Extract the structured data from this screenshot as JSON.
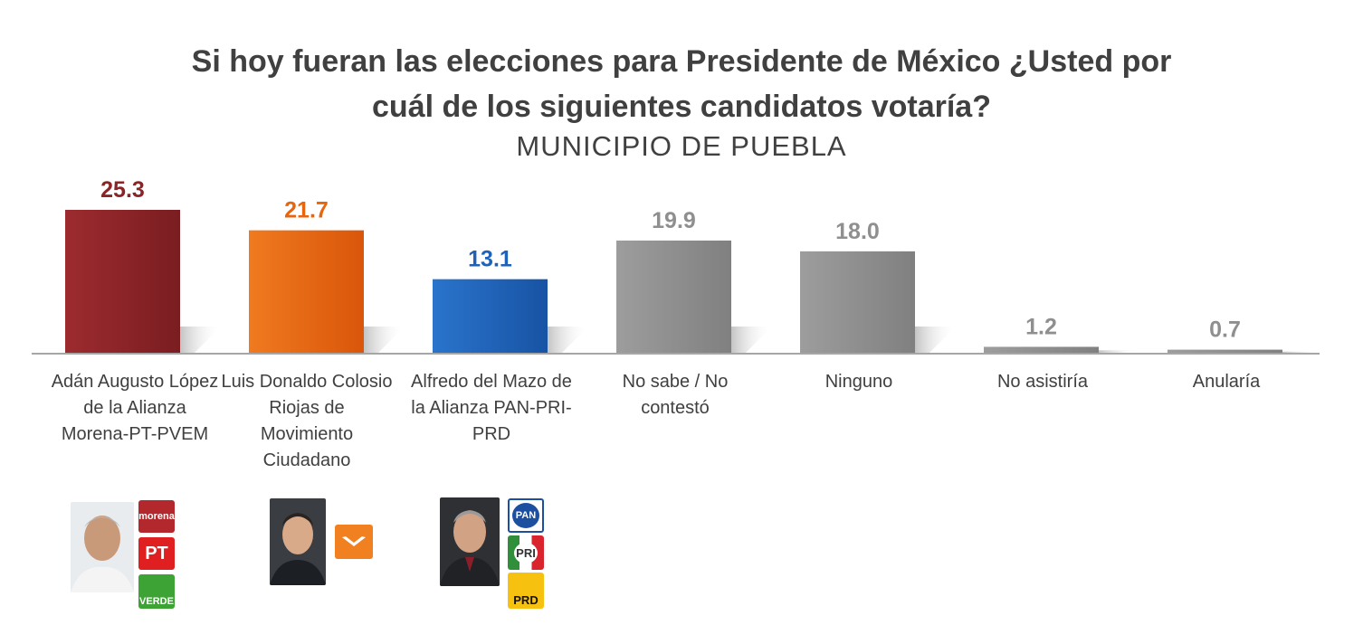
{
  "title_line1": "Si hoy fueran las elecciones para Presidente de México ¿Usted por",
  "title_line2": "cuál de los siguientes candidatos votaría?",
  "subtitle": "MUNICIPIO DE PUEBLA",
  "chart_data": {
    "type": "bar",
    "title": "Si hoy fueran las elecciones para Presidente de México ¿Usted por cuál de los siguientes candidatos votaría?",
    "subtitle": "MUNICIPIO DE PUEBLA",
    "categories": [
      "Adán Augusto López de la Alianza Morena-PT-PVEM",
      "Luis Donaldo Colosio Riojas de Movimiento Ciudadano",
      "Alfredo del Mazo de la Alianza PAN-PRI-PRD",
      "No sabe / No contestó",
      "Ninguno",
      "No asistiría",
      "Anularía"
    ],
    "values": [
      25.3,
      21.7,
      13.1,
      19.9,
      18.0,
      1.2,
      0.7
    ],
    "value_labels": [
      "25.3",
      "21.7",
      "13.1",
      "19.9",
      "18.0",
      "1.2",
      "0.7"
    ],
    "colors": [
      "#8b2327",
      "#e8650f",
      "#1f63b8",
      "#8f8f8f",
      "#8f8f8f",
      "#8f8f8f",
      "#8f8f8f"
    ],
    "label_colors": [
      "#8b2327",
      "#e8650f",
      "#1f63b8",
      "#8f8f8f",
      "#8f8f8f",
      "#8f8f8f",
      "#8f8f8f"
    ],
    "ylim": [
      0,
      25.3
    ],
    "grid": false,
    "legend": "none"
  },
  "labels": {
    "c0": [
      "Adán Augusto López",
      "de la Alianza",
      "Morena-PT-PVEM"
    ],
    "c1": [
      "Luis Donaldo Colosio",
      "Riojas de",
      "Movimiento",
      "Ciudadano"
    ],
    "c2": [
      "Alfredo del Mazo de",
      "la Alianza PAN-PRI-",
      "PRD"
    ],
    "c3": [
      "No sabe / No",
      "contestó"
    ],
    "c4": [
      "Ninguno"
    ],
    "c5": [
      "No asistiría"
    ],
    "c6": [
      "Anularía"
    ]
  },
  "logos": {
    "morena": "morena",
    "pt": "PT",
    "verde": "VERDE",
    "pan": "PAN",
    "pri": "PRI",
    "prd": "PRD"
  },
  "logo_colors": {
    "morena": "#b3282d",
    "pt": "#e02020",
    "verde": "#3ea335",
    "mc": "#f08020",
    "pan": "#1d4fa0",
    "pri": "#2f8f3a",
    "prd": "#f6c20f"
  }
}
